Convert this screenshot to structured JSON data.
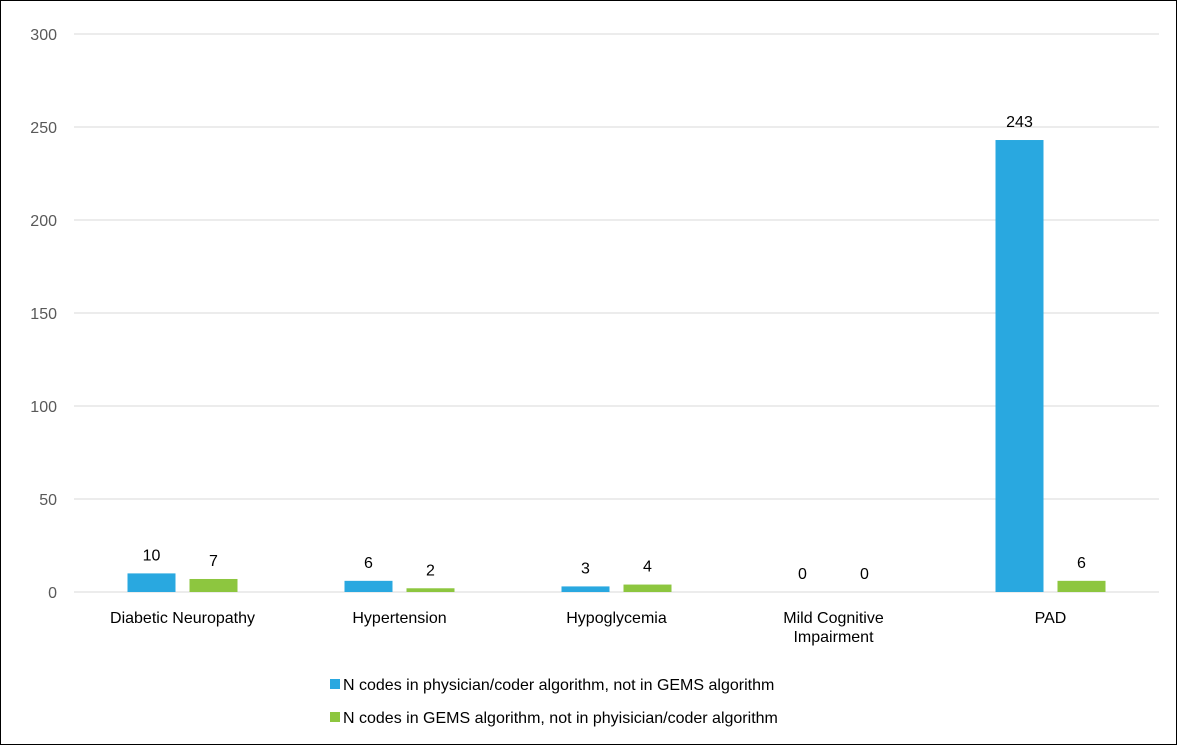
{
  "chart_data": {
    "type": "bar",
    "title": "",
    "xlabel": "",
    "ylabel": "",
    "categories": [
      [
        "Diabetic Neuropathy"
      ],
      [
        "Hypertension"
      ],
      [
        "Hypoglycemia"
      ],
      [
        "Mild Cognitive",
        "Impairment"
      ],
      [
        "PAD"
      ]
    ],
    "series": [
      {
        "name": "N codes in physician/coder algorithm, not in GEMS algorithm",
        "values": [
          10,
          6,
          3,
          0,
          243
        ],
        "color": "#29A8E0"
      },
      {
        "name": "N codes in GEMS algorithm, not in phyisician/coder algorithm",
        "values": [
          7,
          2,
          4,
          0,
          6
        ],
        "color": "#8DC63F"
      }
    ],
    "ylim": [
      0,
      300
    ],
    "yticks": [
      0,
      50,
      100,
      150,
      200,
      250,
      300
    ],
    "grid": true,
    "gridColor": "#D9D9D9",
    "legend": "bottom",
    "data_labels": true
  }
}
